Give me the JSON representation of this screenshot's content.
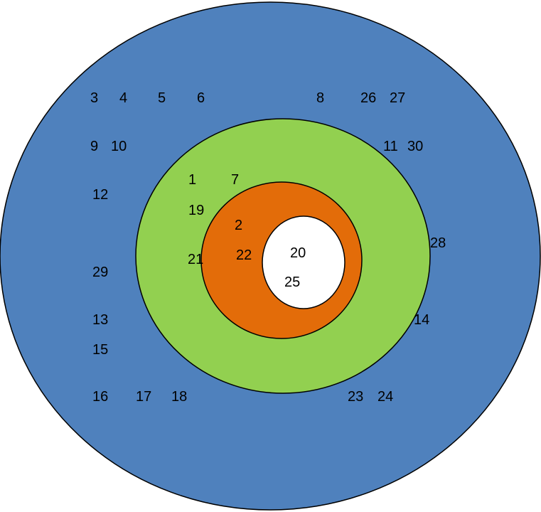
{
  "colors": {
    "outer_ring": "#4f81bd",
    "second_ring": "#92d050",
    "third_ring": "#e36c09",
    "center": "#ffffff",
    "outline": "#000000"
  },
  "rings": {
    "outer": [
      "3",
      "4",
      "5",
      "6",
      "8",
      "26",
      "27",
      "9",
      "10",
      "11",
      "30",
      "12",
      "28",
      "29",
      "13",
      "14",
      "15",
      "16",
      "17",
      "18",
      "23",
      "24"
    ],
    "second": [
      "1",
      "7",
      "19",
      "21"
    ],
    "third": [
      "2",
      "22"
    ],
    "center": [
      "20",
      "25"
    ]
  }
}
